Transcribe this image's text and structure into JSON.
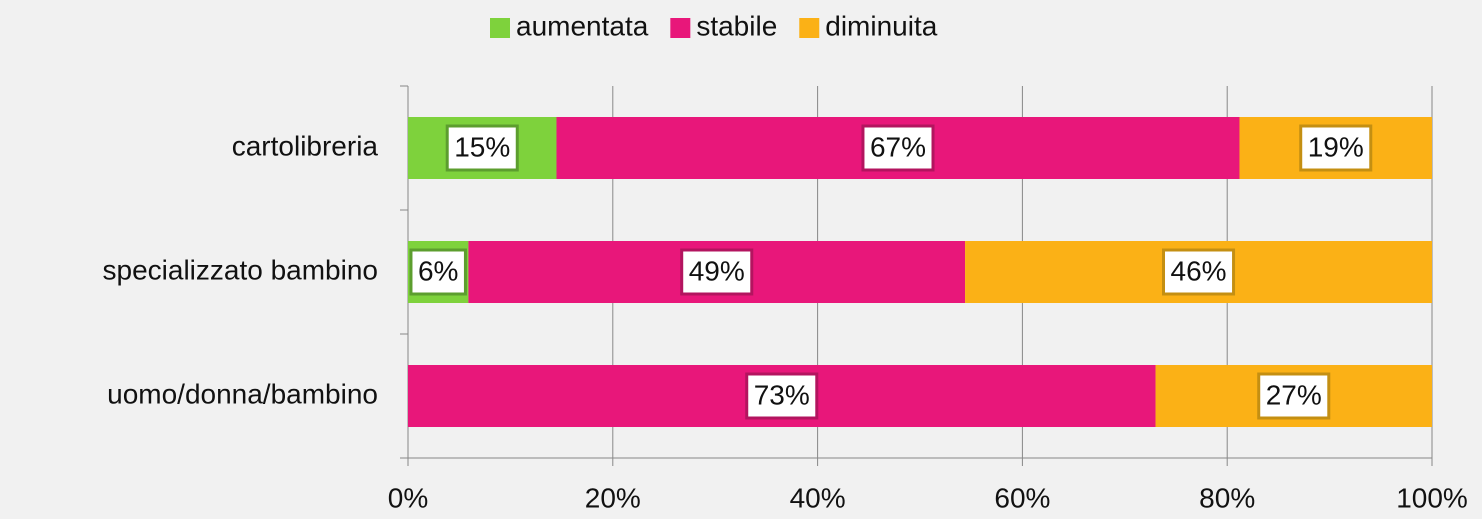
{
  "chart_data": {
    "type": "stacked_barh",
    "categories": [
      "cartolibreria",
      "specializzato bambino",
      "uomo/donna/bambino"
    ],
    "series": [
      {
        "name": "aumentata",
        "color": "#7ed23c",
        "border": "#5c9e2e",
        "values": [
          14.5,
          5.9,
          0
        ],
        "value_labels": [
          "15%",
          "6%",
          null
        ]
      },
      {
        "name": "stabile",
        "color": "#e8177a",
        "border": "#b3145f",
        "values": [
          66.7,
          48.5,
          73.0
        ],
        "value_labels": [
          "67%",
          "49%",
          "73%"
        ]
      },
      {
        "name": "diminuita",
        "color": "#fbb116",
        "border": "#c48f12",
        "values": [
          18.8,
          45.6,
          27.0
        ],
        "value_labels": [
          "19%",
          "46%",
          "27%"
        ]
      }
    ],
    "xlim": [
      0,
      100
    ],
    "xticks": [
      {
        "value": 0,
        "label": "0%"
      },
      {
        "value": 20,
        "label": "20%"
      },
      {
        "value": 40,
        "label": "40%"
      },
      {
        "value": 60,
        "label": "60%"
      },
      {
        "value": 80,
        "label": "80%"
      },
      {
        "value": 100,
        "label": "100%"
      }
    ],
    "grid": true,
    "legend": "top"
  }
}
